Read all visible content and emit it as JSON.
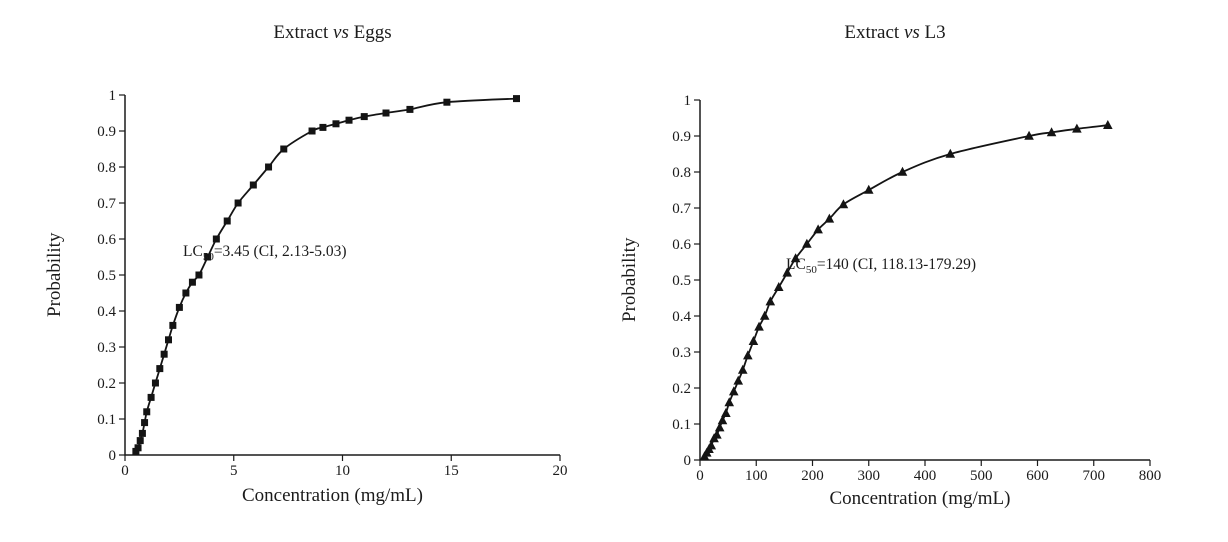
{
  "page": {
    "background": "#ffffff"
  },
  "chart_data": [
    {
      "type": "line",
      "title": "Extract vs Eggs",
      "title_parts": {
        "pre": "Extract ",
        "italic": "vs",
        "post": " Eggs"
      },
      "xlabel": "Concentration (mg/mL)",
      "ylabel": "Probability",
      "annotation": {
        "text": "LC50=3.45 (CI, 2.13-5.03)",
        "prefix": "LC",
        "subscript": "50",
        "suffix": "=3.45 (CI, 2.13-5.03)"
      },
      "marker": "square",
      "line_color": "#141414",
      "xlim": [
        0,
        20
      ],
      "ylim": [
        0,
        1
      ],
      "xtick_values": [
        0,
        5,
        10,
        15,
        20
      ],
      "xtick_labels": [
        "0",
        "5",
        "10",
        "15",
        "20"
      ],
      "ytick_values": [
        0,
        0.1,
        0.2,
        0.3,
        0.4,
        0.5,
        0.6,
        0.7,
        0.8,
        0.9,
        1
      ],
      "ytick_labels": [
        "0",
        "0.1",
        "0.2",
        "0.3",
        "0.4",
        "0.5",
        "0.6",
        "0.7",
        "0.8",
        "0.9",
        "1"
      ],
      "grid": false,
      "legend": "none",
      "series": [
        {
          "name": "Eggs",
          "x": [
            0.5,
            0.6,
            0.7,
            0.8,
            0.9,
            1.0,
            1.2,
            1.4,
            1.6,
            1.8,
            2.0,
            2.2,
            2.5,
            2.8,
            3.1,
            3.4,
            3.8,
            4.2,
            4.7,
            5.2,
            5.9,
            6.6,
            7.3,
            8.6,
            9.1,
            9.7,
            10.3,
            11.0,
            12.0,
            13.1,
            14.8,
            18.0
          ],
          "y": [
            0.01,
            0.02,
            0.04,
            0.06,
            0.09,
            0.12,
            0.16,
            0.2,
            0.24,
            0.28,
            0.32,
            0.36,
            0.41,
            0.45,
            0.48,
            0.5,
            0.55,
            0.6,
            0.65,
            0.7,
            0.75,
            0.8,
            0.85,
            0.9,
            0.91,
            0.92,
            0.93,
            0.94,
            0.95,
            0.96,
            0.98,
            0.99
          ]
        }
      ]
    },
    {
      "type": "line",
      "title": "Extract vs L3",
      "title_parts": {
        "pre": "Extract ",
        "italic": "vs",
        "post": " L3"
      },
      "xlabel": "Concentration (mg/mL)",
      "ylabel": "Probability",
      "annotation": {
        "text": "LC50=140 (CI, 118.13-179.29)",
        "prefix": "LC",
        "subscript": "50",
        "suffix": "=140 (CI, 118.13-179.29)"
      },
      "marker": "triangle",
      "line_color": "#141414",
      "xlim": [
        0,
        800
      ],
      "ylim": [
        0,
        1
      ],
      "xtick_values": [
        0,
        100,
        200,
        300,
        400,
        500,
        600,
        700,
        800
      ],
      "xtick_labels": [
        "0",
        "100",
        "200",
        "300",
        "400",
        "500",
        "600",
        "700",
        "800"
      ],
      "ytick_values": [
        0,
        0.1,
        0.2,
        0.3,
        0.4,
        0.5,
        0.6,
        0.7,
        0.8,
        0.9,
        1
      ],
      "ytick_labels": [
        "0",
        "0.1",
        "0.2",
        "0.3",
        "0.4",
        "0.5",
        "0.6",
        "0.7",
        "0.8",
        "0.9",
        "1"
      ],
      "grid": false,
      "legend": "none",
      "series": [
        {
          "name": "L3",
          "x": [
            8,
            12,
            16,
            20,
            25,
            30,
            35,
            40,
            46,
            52,
            60,
            68,
            76,
            85,
            95,
            105,
            115,
            125,
            140,
            155,
            170,
            190,
            210,
            230,
            255,
            300,
            360,
            445,
            585,
            625,
            670,
            725
          ],
          "y": [
            0.01,
            0.02,
            0.03,
            0.04,
            0.06,
            0.07,
            0.09,
            0.11,
            0.13,
            0.16,
            0.19,
            0.22,
            0.25,
            0.29,
            0.33,
            0.37,
            0.4,
            0.44,
            0.48,
            0.52,
            0.56,
            0.6,
            0.64,
            0.67,
            0.71,
            0.75,
            0.8,
            0.85,
            0.9,
            0.91,
            0.92,
            0.93
          ]
        }
      ]
    }
  ]
}
